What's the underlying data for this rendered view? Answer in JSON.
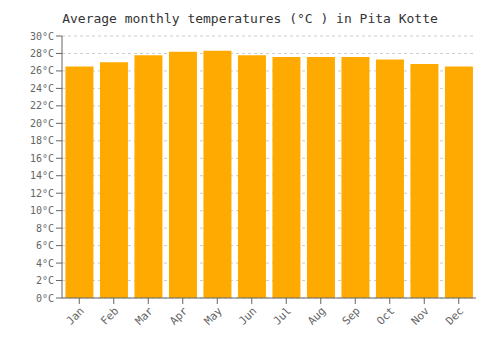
{
  "chart_data": {
    "type": "bar",
    "title": "Average monthly temperatures (°C ) in Pita Kotte",
    "categories": [
      "Jan",
      "Feb",
      "Mar",
      "Apr",
      "May",
      "Jun",
      "Jul",
      "Aug",
      "Sep",
      "Oct",
      "Nov",
      "Dec"
    ],
    "values": [
      26.5,
      27.0,
      27.8,
      28.2,
      28.3,
      27.8,
      27.6,
      27.6,
      27.6,
      27.3,
      26.8,
      26.5
    ],
    "color": "#FFAA00",
    "ylim": [
      0,
      30
    ],
    "yticks": [
      {
        "value": 0,
        "label": "0°C"
      },
      {
        "value": 2,
        "label": "2°C"
      },
      {
        "value": 4,
        "label": "4°C"
      },
      {
        "value": 6,
        "label": "6°C"
      },
      {
        "value": 8,
        "label": "8°C"
      },
      {
        "value": 10,
        "label": "10°C"
      },
      {
        "value": 12,
        "label": "12°C"
      },
      {
        "value": 14,
        "label": "14°C"
      },
      {
        "value": 16,
        "label": "16°C"
      },
      {
        "value": 18,
        "label": "18°C"
      },
      {
        "value": 20,
        "label": "20°C"
      },
      {
        "value": 22,
        "label": "22°C"
      },
      {
        "value": 24,
        "label": "24°C"
      },
      {
        "value": 26,
        "label": "26°C"
      },
      {
        "value": 28,
        "label": "28°C"
      },
      {
        "value": 30,
        "label": "30°C"
      }
    ],
    "grid": true
  }
}
